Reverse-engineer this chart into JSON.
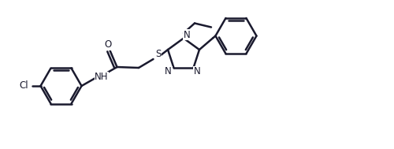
{
  "bg_color": "#ffffff",
  "line_color": "#1a1a2e",
  "line_width": 1.8,
  "figsize": [
    5.0,
    1.89
  ],
  "dpi": 100,
  "xlim": [
    0,
    10
  ],
  "ylim": [
    0,
    3.78
  ],
  "label_fontsize": 8.5
}
